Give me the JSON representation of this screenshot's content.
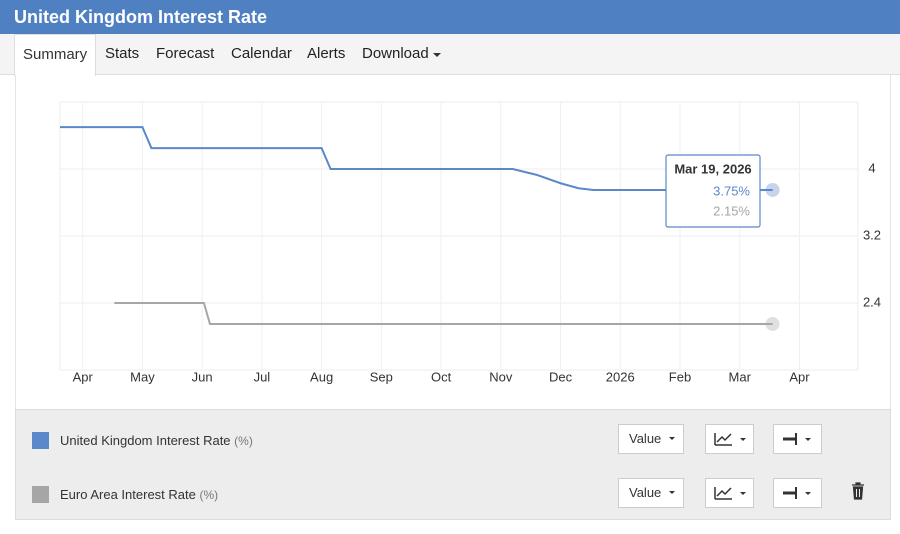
{
  "header": {
    "title": "United Kingdom Interest Rate"
  },
  "tabs": [
    "Summary",
    "Stats",
    "Forecast",
    "Calendar",
    "Alerts",
    "Download"
  ],
  "chart_data": {
    "type": "line",
    "series": [
      {
        "name": "United Kingdom Interest Rate",
        "unit": "(%)",
        "color": "#5b88c9",
        "x": [
          -0.38,
          1.0,
          1.15,
          4.0,
          4.15,
          7.2,
          7.6,
          8.0,
          8.3,
          8.55,
          11.55
        ],
        "values": [
          4.5,
          4.5,
          4.25,
          4.25,
          4.0,
          4.0,
          3.93,
          3.83,
          3.77,
          3.75,
          3.75
        ]
      },
      {
        "name": "Euro Area Interest Rate",
        "unit": "(%)",
        "color": "#a6a6a6",
        "x": [
          0.53,
          2.03,
          2.13,
          11.55
        ],
        "values": [
          2.4,
          2.4,
          2.15,
          2.15
        ]
      }
    ],
    "xlim": [
      -0.38,
      12.98
    ],
    "xticks": [
      {
        "value": 0,
        "label": "Apr"
      },
      {
        "value": 1,
        "label": "May"
      },
      {
        "value": 2,
        "label": "Jun"
      },
      {
        "value": 3,
        "label": "Jul"
      },
      {
        "value": 4,
        "label": "Aug"
      },
      {
        "value": 5,
        "label": "Sep"
      },
      {
        "value": 6,
        "label": "Oct"
      },
      {
        "value": 7,
        "label": "Nov"
      },
      {
        "value": 8,
        "label": "Dec"
      },
      {
        "value": 9,
        "label": "2026"
      },
      {
        "value": 10,
        "label": "Feb"
      },
      {
        "value": 11,
        "label": "Mar"
      },
      {
        "value": 12,
        "label": "Apr"
      }
    ],
    "ylim": [
      1.6,
      4.8
    ],
    "yticks": [
      2.4,
      3.2,
      4
    ],
    "grid": true,
    "tooltip": {
      "date": "Mar 19, 2026",
      "value_labels": [
        "3.75%",
        "2.15%"
      ]
    }
  },
  "controls": [
    "Value",
    "Value"
  ]
}
